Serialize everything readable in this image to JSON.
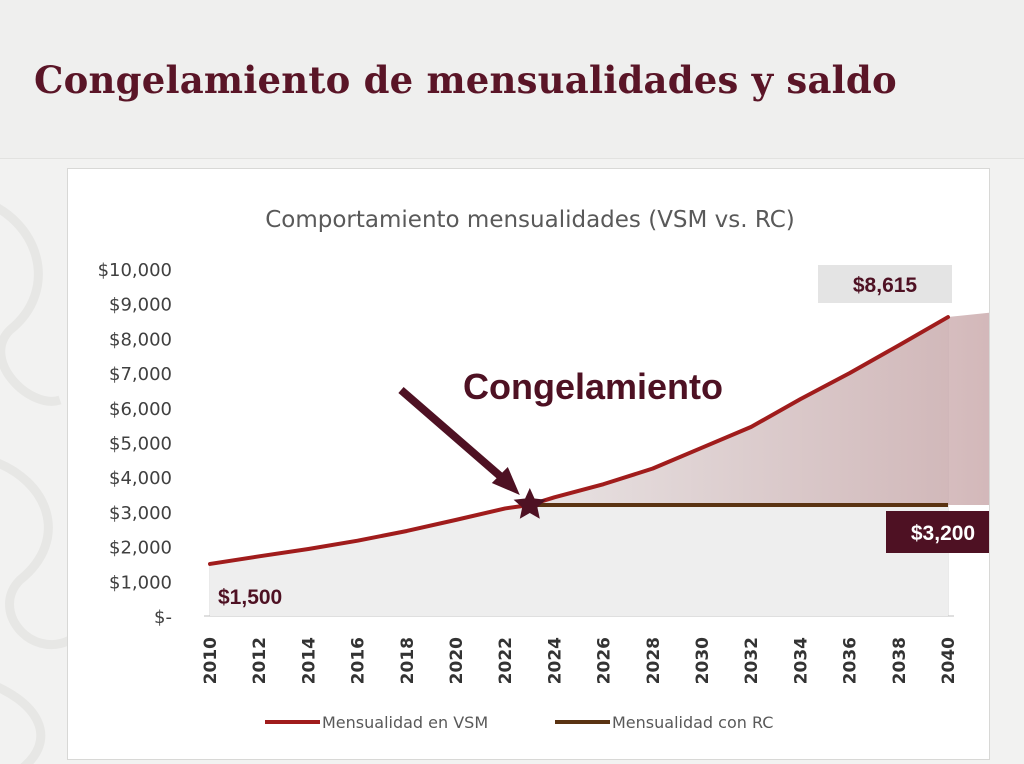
{
  "slide": {
    "title": "Congelamiento de mensualidades y saldo"
  },
  "colors": {
    "title": "#5a1527",
    "vsm_line": "#a01c1c",
    "rc_line": "#5a3312",
    "shade": "#c7a5a7",
    "callout_dark": "#4e1123",
    "callout_light": "#e4e4e4",
    "star": "#4e1123"
  },
  "chart_data": {
    "type": "line",
    "title": "Comportamiento mensualidades (VSM vs. RC)",
    "xlabel": "",
    "ylabel": "",
    "x_ticks": [
      "2010",
      "2012",
      "2014",
      "2016",
      "2018",
      "2020",
      "2022",
      "2024",
      "2026",
      "2028",
      "2030",
      "2032",
      "2034",
      "2036",
      "2038",
      "2040"
    ],
    "y_ticks": [
      "$-",
      "$1,000",
      "$2,000",
      "$3,000",
      "$4,000",
      "$5,000",
      "$6,000",
      "$7,000",
      "$8,000",
      "$9,000",
      "$10,000"
    ],
    "ylim": [
      0,
      10000
    ],
    "xlim": [
      2010,
      2040
    ],
    "grid": "vertical lines at each year",
    "legend_position": "bottom",
    "series": [
      {
        "name": "Mensualidad en VSM",
        "x": [
          2010,
          2012,
          2014,
          2016,
          2018,
          2020,
          2022,
          2023,
          2024,
          2026,
          2028,
          2030,
          2032,
          2034,
          2036,
          2038,
          2040
        ],
        "y": [
          1500,
          1720,
          1930,
          2170,
          2450,
          2770,
          3100,
          3200,
          3420,
          3800,
          4250,
          4850,
          5450,
          6250,
          7000,
          7800,
          8615
        ]
      },
      {
        "name": "Mensualidad con RC",
        "x": [
          2023,
          2040
        ],
        "y": [
          3200,
          3200
        ]
      }
    ],
    "annotations": {
      "arrow_label": "Congelamiento",
      "freeze_year": 2023,
      "freeze_value": 3200,
      "start_label": "$1,500",
      "end_vsm_label": "$8,615",
      "end_rc_label": "$3,200"
    }
  }
}
